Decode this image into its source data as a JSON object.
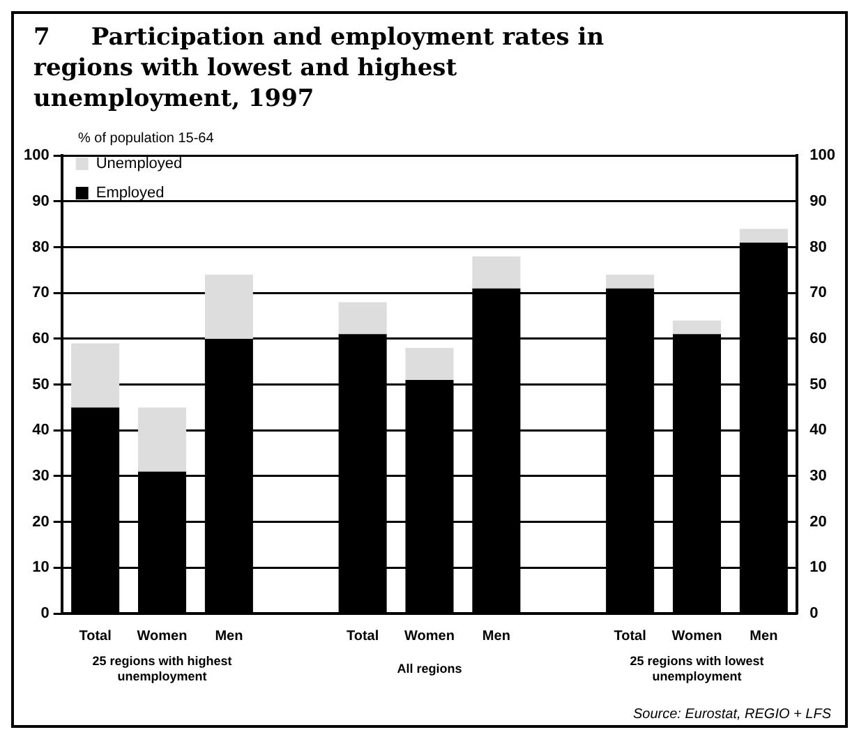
{
  "chart_data": {
    "type": "bar",
    "title": "7     Participation and employment rates in regions with lowest and highest unemployment, 1997",
    "ylabel": "% of population 15-64",
    "categories": [
      "Total",
      "Women",
      "Men",
      null,
      "Total",
      "Women",
      "Men",
      null,
      "Total",
      "Women",
      "Men"
    ],
    "stacked": true,
    "series": [
      {
        "name": "Employed",
        "color": "#000000",
        "values": [
          45,
          31,
          60,
          null,
          61,
          51,
          71,
          null,
          71,
          61,
          81
        ]
      },
      {
        "name": "Unemployed",
        "color": "#dddddd",
        "values": [
          14,
          14,
          14,
          null,
          7,
          7,
          7,
          null,
          3,
          3,
          3
        ]
      }
    ],
    "annotations": [
      "25 regions with highest unemployment",
      "All regions",
      "25 regions with lowest unemployment",
      "Source: Eurostat, REGIO + LFS"
    ],
    "ylim": [
      0,
      100
    ],
    "yticks": [
      0,
      10,
      20,
      30,
      40,
      50,
      60,
      70,
      80,
      90,
      100
    ],
    "y2lim": [
      0,
      100
    ],
    "y2ticks": [
      0,
      10,
      20,
      30,
      40,
      50,
      60,
      70,
      80,
      90,
      100
    ],
    "grid": "y",
    "legend": "top left"
  }
}
